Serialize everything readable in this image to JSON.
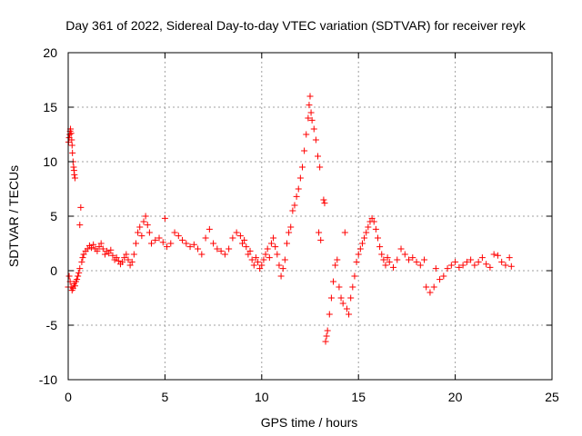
{
  "chart_data": {
    "type": "scatter",
    "title": "Day 361 of 2022, Sidereal Day-to-day VTEC variation (SDTVAR) for receiver reyk",
    "xlabel": "GPS time / hours",
    "ylabel": "SDTVAR / TECUs",
    "xlim": [
      0,
      25
    ],
    "ylim": [
      -10,
      20
    ],
    "xticks": [
      "0",
      "5",
      "10",
      "15",
      "20",
      "25"
    ],
    "yticks": [
      "-10",
      "-5",
      "0",
      "5",
      "10",
      "15",
      "20"
    ],
    "grid": true,
    "marker": "plus",
    "color": "#ff0000",
    "series": [
      {
        "name": "reyk",
        "points": [
          [
            0.0,
            -1.5
          ],
          [
            0.02,
            11.8
          ],
          [
            0.05,
            12.2
          ],
          [
            0.08,
            12.5
          ],
          [
            0.1,
            12.8
          ],
          [
            0.12,
            13.0
          ],
          [
            0.15,
            12.6
          ],
          [
            0.18,
            12.0
          ],
          [
            0.2,
            11.5
          ],
          [
            0.22,
            10.8
          ],
          [
            0.25,
            10.0
          ],
          [
            0.28,
            9.5
          ],
          [
            0.3,
            9.2
          ],
          [
            0.32,
            8.8
          ],
          [
            0.35,
            8.5
          ],
          [
            0.05,
            -0.5
          ],
          [
            0.1,
            -1.0
          ],
          [
            0.15,
            -1.5
          ],
          [
            0.2,
            -1.8
          ],
          [
            0.25,
            -1.6
          ],
          [
            0.3,
            -1.2
          ],
          [
            0.35,
            -1.4
          ],
          [
            0.4,
            -1.0
          ],
          [
            0.45,
            -0.8
          ],
          [
            0.5,
            -0.5
          ],
          [
            0.55,
            -0.2
          ],
          [
            0.6,
            0.2
          ],
          [
            0.6,
            4.2
          ],
          [
            0.65,
            5.8
          ],
          [
            0.7,
            0.8
          ],
          [
            0.75,
            1.2
          ],
          [
            0.8,
            1.5
          ],
          [
            0.9,
            1.8
          ],
          [
            1.0,
            2.0
          ],
          [
            1.1,
            2.3
          ],
          [
            1.2,
            2.1
          ],
          [
            1.3,
            2.4
          ],
          [
            1.4,
            2.0
          ],
          [
            1.5,
            1.8
          ],
          [
            1.6,
            2.2
          ],
          [
            1.7,
            2.5
          ],
          [
            1.8,
            2.0
          ],
          [
            1.9,
            1.5
          ],
          [
            2.0,
            1.8
          ],
          [
            2.1,
            1.6
          ],
          [
            2.2,
            1.9
          ],
          [
            2.3,
            1.4
          ],
          [
            2.4,
            1.0
          ],
          [
            2.5,
            1.2
          ],
          [
            2.6,
            0.9
          ],
          [
            2.7,
            0.6
          ],
          [
            2.8,
            0.8
          ],
          [
            2.9,
            1.2
          ],
          [
            3.0,
            1.5
          ],
          [
            3.1,
            1.0
          ],
          [
            3.2,
            0.5
          ],
          [
            3.3,
            0.8
          ],
          [
            3.4,
            1.5
          ],
          [
            3.5,
            2.5
          ],
          [
            3.6,
            3.5
          ],
          [
            3.7,
            4.0
          ],
          [
            3.8,
            3.2
          ],
          [
            3.9,
            4.5
          ],
          [
            4.0,
            5.0
          ],
          [
            4.1,
            4.2
          ],
          [
            4.2,
            3.5
          ],
          [
            4.3,
            2.5
          ],
          [
            4.5,
            2.8
          ],
          [
            4.7,
            3.0
          ],
          [
            4.9,
            2.6
          ],
          [
            5.0,
            4.8
          ],
          [
            5.1,
            2.2
          ],
          [
            5.3,
            2.5
          ],
          [
            5.5,
            3.5
          ],
          [
            5.7,
            3.2
          ],
          [
            5.9,
            2.8
          ],
          [
            6.1,
            2.5
          ],
          [
            6.3,
            2.2
          ],
          [
            6.5,
            2.4
          ],
          [
            6.7,
            2.0
          ],
          [
            6.9,
            1.5
          ],
          [
            7.1,
            3.0
          ],
          [
            7.3,
            3.8
          ],
          [
            7.5,
            2.5
          ],
          [
            7.7,
            2.0
          ],
          [
            7.9,
            1.8
          ],
          [
            8.1,
            1.5
          ],
          [
            8.3,
            2.0
          ],
          [
            8.5,
            3.0
          ],
          [
            8.7,
            3.5
          ],
          [
            8.9,
            3.2
          ],
          [
            9.0,
            2.5
          ],
          [
            9.1,
            2.8
          ],
          [
            9.2,
            2.2
          ],
          [
            9.3,
            1.5
          ],
          [
            9.4,
            1.8
          ],
          [
            9.5,
            1.0
          ],
          [
            9.6,
            0.5
          ],
          [
            9.7,
            1.2
          ],
          [
            9.8,
            0.8
          ],
          [
            9.9,
            0.2
          ],
          [
            10.0,
            0.5
          ],
          [
            10.1,
            1.0
          ],
          [
            10.2,
            1.5
          ],
          [
            10.3,
            2.0
          ],
          [
            10.4,
            1.2
          ],
          [
            10.5,
            2.5
          ],
          [
            10.6,
            3.0
          ],
          [
            10.7,
            2.2
          ],
          [
            10.8,
            1.5
          ],
          [
            10.9,
            0.5
          ],
          [
            11.0,
            -0.5
          ],
          [
            11.1,
            0.2
          ],
          [
            11.2,
            1.0
          ],
          [
            11.3,
            2.5
          ],
          [
            11.4,
            3.5
          ],
          [
            11.5,
            4.0
          ],
          [
            11.6,
            5.5
          ],
          [
            11.7,
            6.0
          ],
          [
            11.8,
            6.8
          ],
          [
            11.9,
            7.5
          ],
          [
            12.0,
            8.5
          ],
          [
            12.1,
            9.5
          ],
          [
            12.2,
            11.0
          ],
          [
            12.3,
            12.5
          ],
          [
            12.4,
            14.0
          ],
          [
            12.45,
            15.2
          ],
          [
            12.5,
            16.0
          ],
          [
            12.55,
            14.5
          ],
          [
            12.6,
            13.8
          ],
          [
            12.7,
            13.0
          ],
          [
            12.8,
            12.0
          ],
          [
            12.9,
            10.5
          ],
          [
            13.0,
            9.5
          ],
          [
            12.95,
            3.5
          ],
          [
            13.05,
            2.8
          ],
          [
            13.2,
            6.5
          ],
          [
            13.25,
            6.2
          ],
          [
            13.3,
            -6.5
          ],
          [
            13.35,
            -6.0
          ],
          [
            13.4,
            -5.5
          ],
          [
            13.5,
            -4.0
          ],
          [
            13.6,
            -2.5
          ],
          [
            13.7,
            -1.0
          ],
          [
            13.8,
            0.5
          ],
          [
            13.9,
            1.0
          ],
          [
            14.0,
            -1.5
          ],
          [
            14.1,
            -2.5
          ],
          [
            14.2,
            -3.0
          ],
          [
            14.3,
            3.5
          ],
          [
            14.4,
            -3.5
          ],
          [
            14.5,
            -4.0
          ],
          [
            14.6,
            -2.5
          ],
          [
            14.7,
            -1.5
          ],
          [
            14.8,
            -0.5
          ],
          [
            14.9,
            0.8
          ],
          [
            15.0,
            1.5
          ],
          [
            15.1,
            2.0
          ],
          [
            15.2,
            2.5
          ],
          [
            15.3,
            3.0
          ],
          [
            15.4,
            3.5
          ],
          [
            15.5,
            4.0
          ],
          [
            15.6,
            4.5
          ],
          [
            15.7,
            4.8
          ],
          [
            15.8,
            4.5
          ],
          [
            15.9,
            3.8
          ],
          [
            16.0,
            3.0
          ],
          [
            16.1,
            2.2
          ],
          [
            16.2,
            1.5
          ],
          [
            16.3,
            1.0
          ],
          [
            16.4,
            0.5
          ],
          [
            16.5,
            1.2
          ],
          [
            16.6,
            0.8
          ],
          [
            16.8,
            0.3
          ],
          [
            17.0,
            1.0
          ],
          [
            17.2,
            2.0
          ],
          [
            17.4,
            1.5
          ],
          [
            17.6,
            1.0
          ],
          [
            17.8,
            1.2
          ],
          [
            18.0,
            0.8
          ],
          [
            18.2,
            0.5
          ],
          [
            18.4,
            1.0
          ],
          [
            18.5,
            -1.5
          ],
          [
            18.7,
            -2.0
          ],
          [
            18.9,
            -1.5
          ],
          [
            19.0,
            0.2
          ],
          [
            19.2,
            -0.8
          ],
          [
            19.4,
            -0.5
          ],
          [
            19.6,
            0.2
          ],
          [
            19.8,
            0.5
          ],
          [
            20.0,
            0.8
          ],
          [
            20.2,
            0.3
          ],
          [
            20.4,
            0.5
          ],
          [
            20.6,
            0.8
          ],
          [
            20.8,
            1.0
          ],
          [
            21.0,
            0.5
          ],
          [
            21.2,
            0.8
          ],
          [
            21.4,
            1.2
          ],
          [
            21.6,
            0.6
          ],
          [
            21.8,
            0.3
          ],
          [
            22.0,
            1.5
          ],
          [
            22.2,
            1.4
          ],
          [
            22.4,
            0.8
          ],
          [
            22.6,
            0.5
          ],
          [
            22.8,
            1.2
          ],
          [
            22.9,
            0.4
          ]
        ]
      }
    ]
  }
}
